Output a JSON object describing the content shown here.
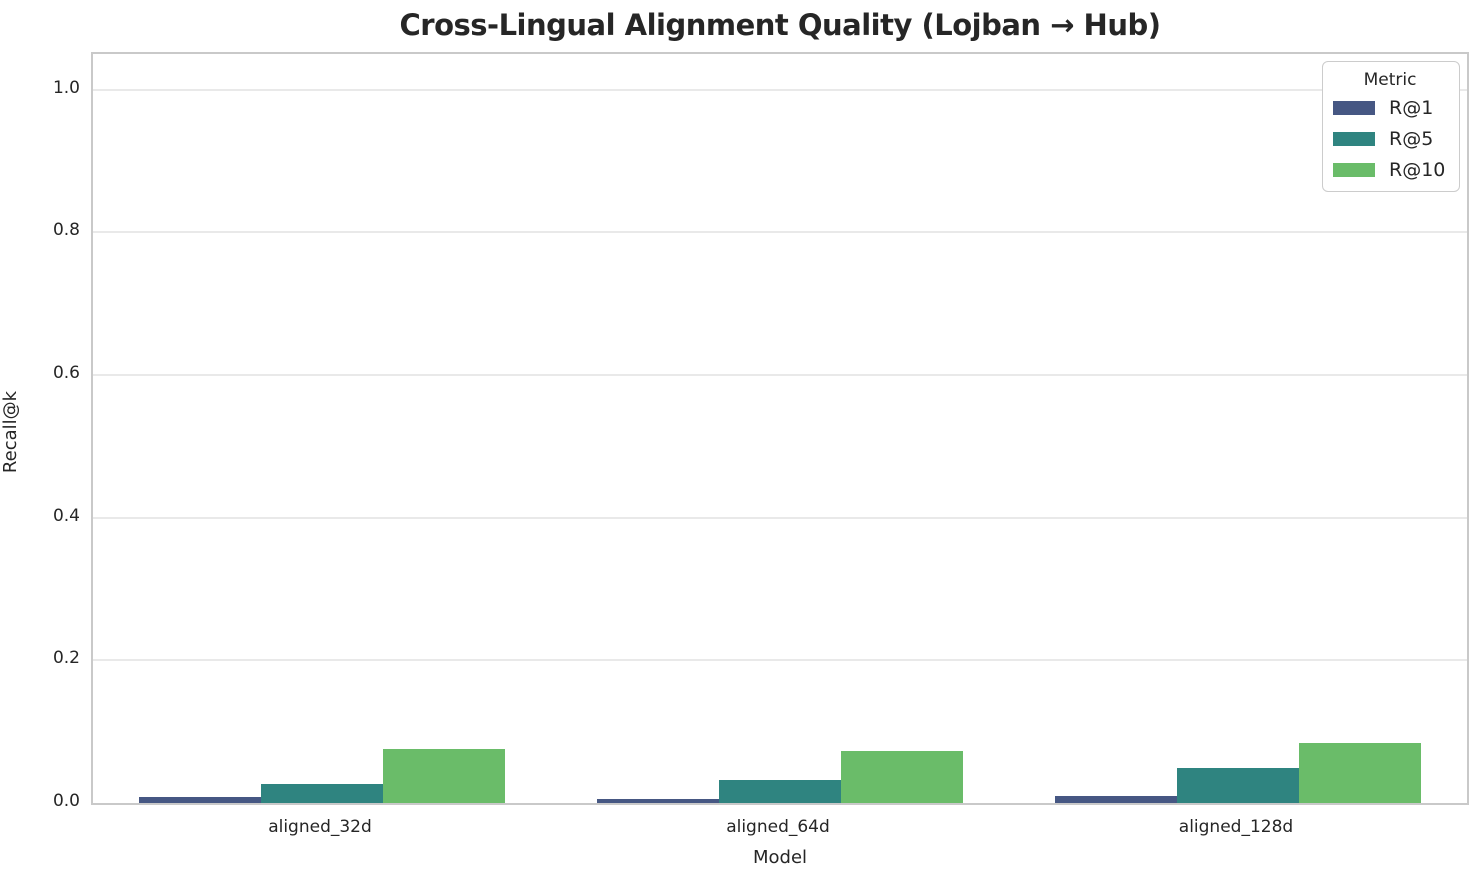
{
  "chart_data": {
    "type": "bar",
    "title": "Cross-Lingual Alignment Quality (Lojban → Hub)",
    "xlabel": "Model",
    "ylabel": "Recall@k",
    "categories": [
      "aligned_32d",
      "aligned_64d",
      "aligned_128d"
    ],
    "series": [
      {
        "name": "R@1",
        "color": "#465783",
        "values": [
          0.008,
          0.006,
          0.01
        ]
      },
      {
        "name": "R@5",
        "color": "#2f8480",
        "values": [
          0.027,
          0.032,
          0.049
        ]
      },
      {
        "name": "R@10",
        "color": "#6abc69",
        "values": [
          0.076,
          0.073,
          0.084
        ]
      }
    ],
    "legend_title": "Metric",
    "legend_position": "upper right",
    "ylim": [
      0,
      1.05
    ],
    "yticks": [
      0.0,
      0.2,
      0.4,
      0.6,
      0.8,
      1.0
    ],
    "ytick_labels": [
      "0.0",
      "0.2",
      "0.4",
      "0.6",
      "0.8",
      "1.0"
    ],
    "grid": true,
    "bar_group_fraction": 0.8
  },
  "colors": {
    "background": "#ffffff",
    "grid": "#e9e9e9",
    "spine": "#c9c9c9",
    "text": "#262626",
    "legend_border": "#cccccc"
  }
}
